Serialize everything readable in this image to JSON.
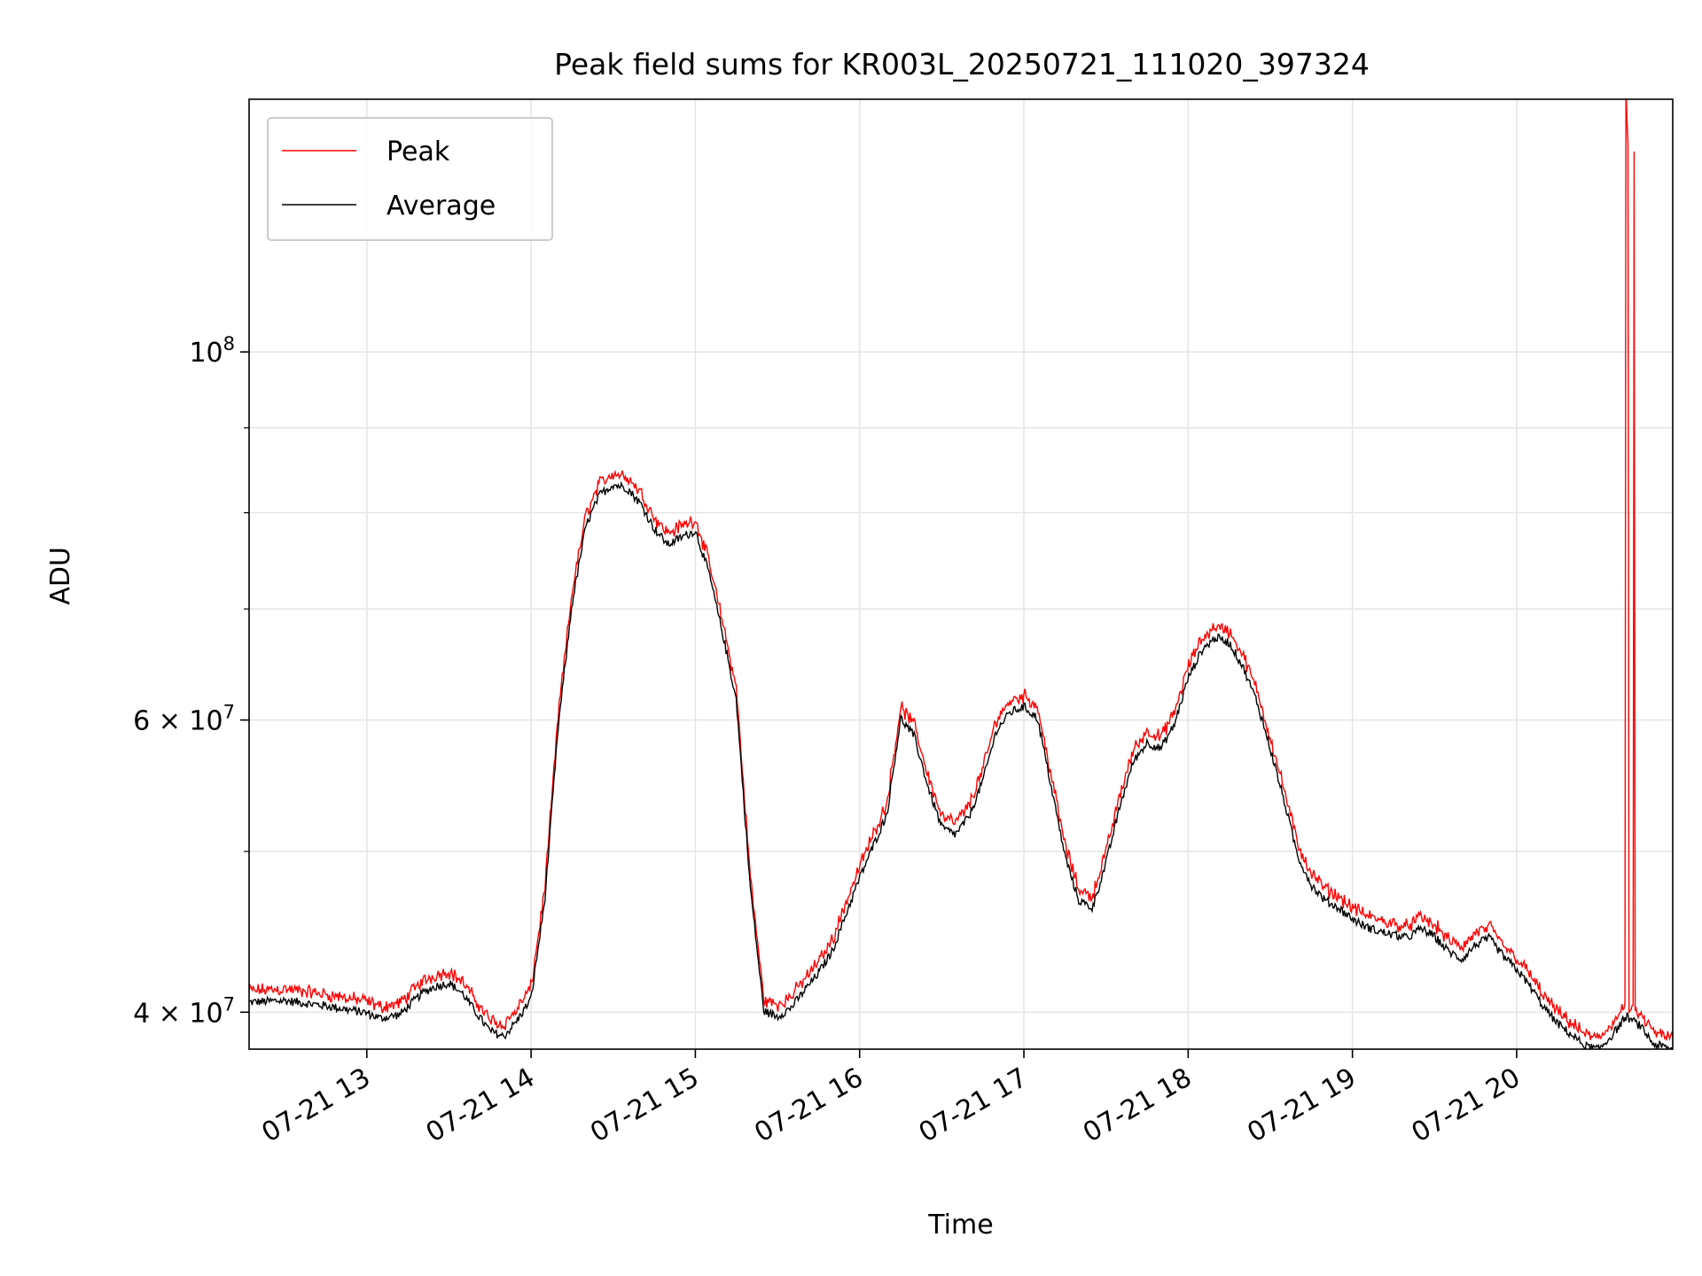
{
  "chart_data": {
    "type": "line",
    "title": "Peak field sums for KR003L_20250721_111020_397324",
    "xlabel": "Time",
    "ylabel": "ADU",
    "yscale": "log",
    "xlim": [
      "2025-07-21 12:17",
      "2025-07-21 20:57"
    ],
    "ylim": [
      38000000,
      142000000
    ],
    "x_ticks": [
      "07-21 13",
      "07-21 14",
      "07-21 15",
      "07-21 16",
      "07-21 17",
      "07-21 18",
      "07-21 19",
      "07-21 20"
    ],
    "x_tick_times": [
      "2025-07-21 13:00",
      "2025-07-21 14:00",
      "2025-07-21 15:00",
      "2025-07-21 16:00",
      "2025-07-21 17:00",
      "2025-07-21 18:00",
      "2025-07-21 19:00",
      "2025-07-21 20:00"
    ],
    "y_major_ticks": [
      {
        "value": 40000000,
        "mantissa": "4",
        "exp": "7"
      },
      {
        "value": 60000000,
        "mantissa": "6",
        "exp": "7"
      },
      {
        "value": 100000000,
        "mantissa": "",
        "exp": "8"
      }
    ],
    "y_minor_ticks": [
      50000000,
      70000000,
      80000000,
      90000000
    ],
    "grid": true,
    "legend_position": "top-left",
    "series": [
      {
        "name": "Peak",
        "color": "#ff0000",
        "points": [
          [
            "2025-07-21 12:17",
            40800000
          ],
          [
            "2025-07-21 12:30",
            40900000
          ],
          [
            "2025-07-21 12:45",
            40600000
          ],
          [
            "2025-07-21 13:00",
            40200000
          ],
          [
            "2025-07-21 13:05",
            39900000
          ],
          [
            "2025-07-21 13:12",
            40100000
          ],
          [
            "2025-07-21 13:20",
            41300000
          ],
          [
            "2025-07-21 13:25",
            41700000
          ],
          [
            "2025-07-21 13:30",
            41900000
          ],
          [
            "2025-07-21 13:35",
            41300000
          ],
          [
            "2025-07-21 13:40",
            40200000
          ],
          [
            "2025-07-21 13:45",
            39200000
          ],
          [
            "2025-07-21 13:50",
            38900000
          ],
          [
            "2025-07-21 13:55",
            39800000
          ],
          [
            "2025-07-21 14:00",
            41000000
          ],
          [
            "2025-07-21 14:05",
            47000000
          ],
          [
            "2025-07-21 14:10",
            60000000
          ],
          [
            "2025-07-21 14:15",
            71000000
          ],
          [
            "2025-07-21 14:20",
            79000000
          ],
          [
            "2025-07-21 14:25",
            82500000
          ],
          [
            "2025-07-21 14:30",
            83700000
          ],
          [
            "2025-07-21 14:35",
            83300000
          ],
          [
            "2025-07-21 14:40",
            81500000
          ],
          [
            "2025-07-21 14:45",
            78700000
          ],
          [
            "2025-07-21 14:50",
            77000000
          ],
          [
            "2025-07-21 14:55",
            77800000
          ],
          [
            "2025-07-21 15:00",
            78500000
          ],
          [
            "2025-07-21 15:05",
            74000000
          ],
          [
            "2025-07-21 15:10",
            68000000
          ],
          [
            "2025-07-21 15:15",
            62000000
          ],
          [
            "2025-07-21 15:20",
            48000000
          ],
          [
            "2025-07-21 15:25",
            40300000
          ],
          [
            "2025-07-21 15:30",
            40000000
          ],
          [
            "2025-07-21 15:35",
            40500000
          ],
          [
            "2025-07-21 15:40",
            41500000
          ],
          [
            "2025-07-21 15:45",
            42500000
          ],
          [
            "2025-07-21 15:50",
            43800000
          ],
          [
            "2025-07-21 16:00",
            48500000
          ],
          [
            "2025-07-21 16:10",
            53000000
          ],
          [
            "2025-07-21 16:15",
            60500000
          ],
          [
            "2025-07-21 16:20",
            59000000
          ],
          [
            "2025-07-21 16:25",
            55000000
          ],
          [
            "2025-07-21 16:30",
            52000000
          ],
          [
            "2025-07-21 16:35",
            51500000
          ],
          [
            "2025-07-21 16:40",
            52800000
          ],
          [
            "2025-07-21 16:45",
            55500000
          ],
          [
            "2025-07-21 16:50",
            59500000
          ],
          [
            "2025-07-21 16:55",
            61000000
          ],
          [
            "2025-07-21 17:00",
            61500000
          ],
          [
            "2025-07-21 17:05",
            60500000
          ],
          [
            "2025-07-21 17:10",
            55000000
          ],
          [
            "2025-07-21 17:15",
            50000000
          ],
          [
            "2025-07-21 17:20",
            47000000
          ],
          [
            "2025-07-21 17:25",
            46500000
          ],
          [
            "2025-07-21 17:30",
            49500000
          ],
          [
            "2025-07-21 17:35",
            53500000
          ],
          [
            "2025-07-21 17:40",
            57000000
          ],
          [
            "2025-07-21 17:45",
            58500000
          ],
          [
            "2025-07-21 17:50",
            58000000
          ],
          [
            "2025-07-21 17:55",
            60000000
          ],
          [
            "2025-07-21 18:00",
            64000000
          ],
          [
            "2025-07-21 18:05",
            66500000
          ],
          [
            "2025-07-21 18:10",
            67700000
          ],
          [
            "2025-07-21 18:15",
            67200000
          ],
          [
            "2025-07-21 18:20",
            65000000
          ],
          [
            "2025-07-21 18:25",
            62000000
          ],
          [
            "2025-07-21 18:30",
            58000000
          ],
          [
            "2025-07-21 18:35",
            54000000
          ],
          [
            "2025-07-21 18:40",
            50000000
          ],
          [
            "2025-07-21 18:45",
            48000000
          ],
          [
            "2025-07-21 18:50",
            47000000
          ],
          [
            "2025-07-21 18:55",
            46500000
          ],
          [
            "2025-07-21 19:00",
            45800000
          ],
          [
            "2025-07-21 19:05",
            45300000
          ],
          [
            "2025-07-21 19:10",
            45000000
          ],
          [
            "2025-07-21 19:15",
            44800000
          ],
          [
            "2025-07-21 19:20",
            44600000
          ],
          [
            "2025-07-21 19:25",
            45200000
          ],
          [
            "2025-07-21 19:30",
            44700000
          ],
          [
            "2025-07-21 19:35",
            43800000
          ],
          [
            "2025-07-21 19:40",
            43300000
          ],
          [
            "2025-07-21 19:45",
            44200000
          ],
          [
            "2025-07-21 19:50",
            44600000
          ],
          [
            "2025-07-21 19:55",
            43500000
          ],
          [
            "2025-07-21 20:00",
            42700000
          ],
          [
            "2025-07-21 20:05",
            41700000
          ],
          [
            "2025-07-21 20:10",
            40500000
          ],
          [
            "2025-07-21 20:15",
            39600000
          ],
          [
            "2025-07-21 20:20",
            39000000
          ],
          [
            "2025-07-21 20:25",
            38400000
          ],
          [
            "2025-07-21 20:30",
            38200000
          ],
          [
            "2025-07-21 20:35",
            39000000
          ],
          [
            "2025-07-21 20:40",
            40000000
          ],
          [
            "2025-07-21 20:45",
            39500000
          ],
          [
            "2025-07-21 20:50",
            38500000
          ],
          [
            "2025-07-21 20:57",
            38200000
          ]
        ]
      },
      {
        "name": "Average",
        "color": "#000000",
        "points": []
      }
    ]
  }
}
